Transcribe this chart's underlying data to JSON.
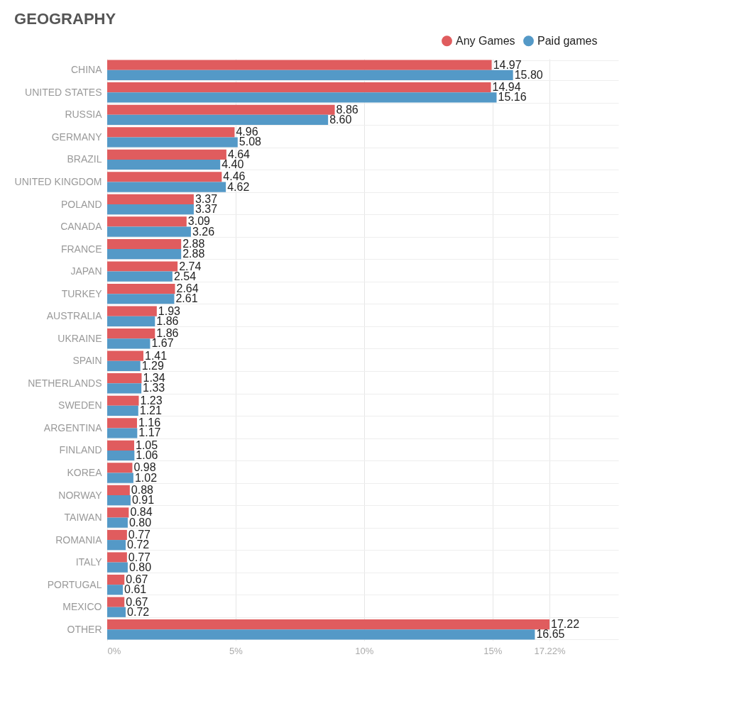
{
  "chart_data": {
    "type": "bar",
    "orientation": "horizontal",
    "title": "GEOGRAPHY",
    "categories": [
      "CHINA",
      "UNITED STATES",
      "RUSSIA",
      "GERMANY",
      "BRAZIL",
      "UNITED KINGDOM",
      "POLAND",
      "CANADA",
      "FRANCE",
      "JAPAN",
      "TURKEY",
      "AUSTRALIA",
      "UKRAINE",
      "SPAIN",
      "NETHERLANDS",
      "SWEDEN",
      "ARGENTINA",
      "FINLAND",
      "KOREA",
      "NORWAY",
      "TAIWAN",
      "ROMANIA",
      "ITALY",
      "PORTUGAL",
      "MEXICO",
      "OTHER"
    ],
    "series": [
      {
        "name": "Any Games",
        "color": "#e05c5e",
        "values": [
          14.97,
          14.94,
          8.86,
          4.96,
          4.64,
          4.46,
          3.37,
          3.09,
          2.88,
          2.74,
          2.64,
          1.93,
          1.86,
          1.41,
          1.34,
          1.23,
          1.16,
          1.05,
          0.98,
          0.88,
          0.84,
          0.77,
          0.77,
          0.67,
          0.67,
          17.22
        ],
        "value_labels": [
          "14.97",
          "14.94",
          "8.86",
          "4.96",
          "4.64",
          "4.46",
          "3.37",
          "3.09",
          "2.88",
          "2.74",
          "2.64",
          "1.93",
          "1.86",
          "1.41",
          "1.34",
          "1.23",
          "1.16",
          "1.05",
          "0.98",
          "0.88",
          "0.84",
          "0.77",
          "0.77",
          "0.67",
          "0.67",
          "17.22"
        ]
      },
      {
        "name": "Paid games",
        "color": "#5499c7",
        "values": [
          15.8,
          15.16,
          8.6,
          5.08,
          4.4,
          4.62,
          3.37,
          3.26,
          2.88,
          2.54,
          2.61,
          1.86,
          1.67,
          1.29,
          1.33,
          1.21,
          1.17,
          1.06,
          1.02,
          0.91,
          0.8,
          0.72,
          0.8,
          0.61,
          0.72,
          16.65
        ],
        "value_labels": [
          "15.80",
          "15.16",
          "8.60",
          "5.08",
          "4.40",
          "4.62",
          "3.37",
          "3.26",
          "2.88",
          "2.54",
          "2.61",
          "1.86",
          "1.67",
          "1.29",
          "1.33",
          "1.21",
          "1.17",
          "1.06",
          "1.02",
          "0.91",
          "0.80",
          "0.72",
          "0.80",
          "0.61",
          "0.72",
          "16.65"
        ]
      }
    ],
    "xlim": [
      0,
      19.9
    ],
    "xticks": [
      {
        "value": 0,
        "label": "0%"
      },
      {
        "value": 5,
        "label": "5%"
      },
      {
        "value": 10,
        "label": "10%"
      },
      {
        "value": 15,
        "label": "15%"
      },
      {
        "value": 17.22,
        "label": "17.22%"
      }
    ],
    "grid": true,
    "legend": "top right"
  }
}
